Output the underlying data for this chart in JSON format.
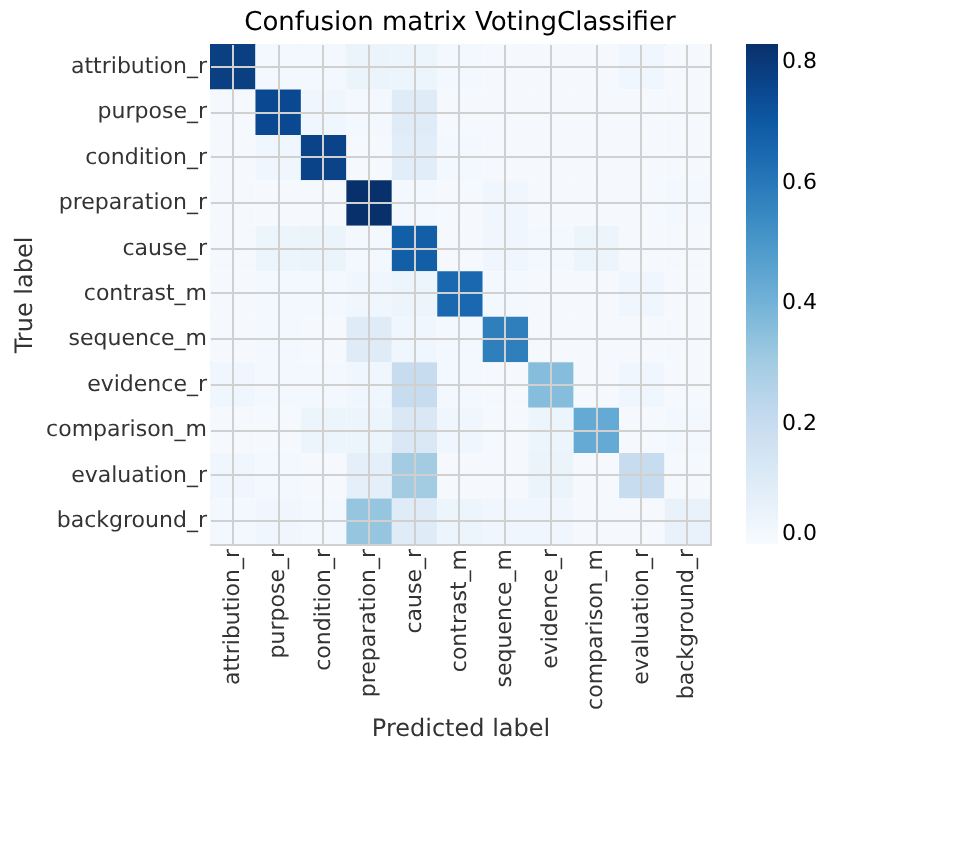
{
  "chart_data": {
    "type": "heatmap",
    "title": "Confusion matrix VotingClassifier",
    "xlabel": "Predicted label",
    "ylabel": "True label",
    "categories": [
      "attribution_r",
      "purpose_r",
      "condition_r",
      "preparation_r",
      "cause_r",
      "contrast_m",
      "sequence_m",
      "evidence_r",
      "comparison_m",
      "evaluation_r",
      "background_r"
    ],
    "y_categories": [
      "attribution_r",
      "purpose_r",
      "condition_r",
      "preparation_r",
      "cause_r",
      "contrast_m",
      "sequence_m",
      "evidence_r",
      "comparison_m",
      "evaluation_r",
      "background_r"
    ],
    "cells": [
      [
        0.78,
        0.02,
        0.02,
        0.05,
        0.04,
        0.02,
        0.01,
        0.01,
        0.01,
        0.03,
        0.01
      ],
      [
        0.01,
        0.75,
        0.03,
        0.02,
        0.1,
        0.01,
        0.01,
        0.01,
        0.01,
        0.01,
        0.01
      ],
      [
        0.01,
        0.03,
        0.77,
        0.01,
        0.09,
        0.02,
        0.01,
        0.01,
        0.01,
        0.01,
        0.01
      ],
      [
        0.01,
        0.01,
        0.01,
        0.83,
        0.02,
        0.01,
        0.03,
        0.01,
        0.01,
        0.01,
        0.02
      ],
      [
        0.01,
        0.04,
        0.05,
        0.02,
        0.68,
        0.01,
        0.03,
        0.02,
        0.04,
        0.01,
        0.01
      ],
      [
        0.01,
        0.02,
        0.02,
        0.03,
        0.04,
        0.65,
        0.02,
        0.01,
        0.01,
        0.03,
        0.01
      ],
      [
        0.01,
        0.02,
        0.01,
        0.1,
        0.03,
        0.02,
        0.58,
        0.01,
        0.01,
        0.01,
        0.01
      ],
      [
        0.03,
        0.02,
        0.02,
        0.03,
        0.2,
        0.02,
        0.01,
        0.36,
        0.01,
        0.03,
        0.01
      ],
      [
        0.01,
        0.01,
        0.04,
        0.04,
        0.12,
        0.03,
        0.01,
        0.04,
        0.43,
        0.01,
        0.02
      ],
      [
        0.03,
        0.02,
        0.01,
        0.08,
        0.3,
        0.01,
        0.01,
        0.05,
        0.01,
        0.2,
        0.01
      ],
      [
        0.02,
        0.03,
        0.02,
        0.33,
        0.1,
        0.04,
        0.03,
        0.03,
        0.01,
        0.01,
        0.06
      ]
    ],
    "clim": [
      0,
      0.83
    ],
    "cticks": [
      {
        "value": 0,
        "label": "0.0"
      },
      {
        "value": 0.2,
        "label": "0.2"
      },
      {
        "value": 0.4,
        "label": "0.4"
      },
      {
        "value": 0.6,
        "label": "0.6"
      },
      {
        "value": 0.8,
        "label": "0.8"
      }
    ],
    "grid": true
  }
}
